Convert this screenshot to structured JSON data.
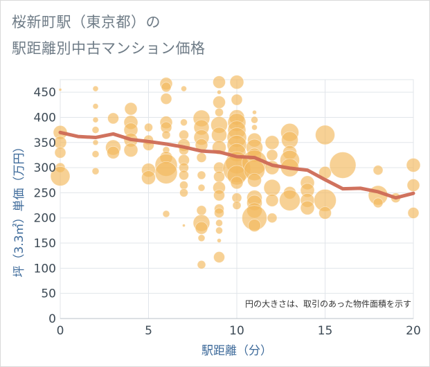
{
  "title_line1": "桜新町駅（東京都）の",
  "title_line2": "駅距離別中古マンション価格",
  "chart_data": {
    "type": "scatter",
    "xlabel": "駅距離（分）",
    "ylabel": "坪（3.3㎡）単価（万円）",
    "xlim": [
      0,
      20
    ],
    "ylim": [
      0,
      475
    ],
    "x_ticks": [
      0,
      5,
      10,
      15,
      20
    ],
    "y_ticks": [
      0,
      50,
      100,
      150,
      200,
      250,
      300,
      350,
      400,
      450
    ],
    "grid": true,
    "note": "円の大きさは、取引のあった物件面積を示す",
    "bubble_color": "#f2b85c",
    "line_color": "#cd6a55",
    "bubbles": [
      {
        "x": 0,
        "y": 455,
        "r": 2
      },
      {
        "x": 0,
        "y": 370,
        "r": 10
      },
      {
        "x": 0,
        "y": 350,
        "r": 9
      },
      {
        "x": 0,
        "y": 330,
        "r": 8
      },
      {
        "x": 0,
        "y": 300,
        "r": 7
      },
      {
        "x": 0,
        "y": 283,
        "r": 14
      },
      {
        "x": 2,
        "y": 457,
        "r": 4
      },
      {
        "x": 2,
        "y": 422,
        "r": 4
      },
      {
        "x": 2,
        "y": 395,
        "r": 4
      },
      {
        "x": 2,
        "y": 375,
        "r": 5
      },
      {
        "x": 2,
        "y": 350,
        "r": 4
      },
      {
        "x": 2,
        "y": 327,
        "r": 5
      },
      {
        "x": 2,
        "y": 293,
        "r": 5
      },
      {
        "x": 3,
        "y": 398,
        "r": 8
      },
      {
        "x": 3,
        "y": 340,
        "r": 11
      },
      {
        "x": 3,
        "y": 330,
        "r": 9
      },
      {
        "x": 4,
        "y": 417,
        "r": 9
      },
      {
        "x": 4,
        "y": 390,
        "r": 10
      },
      {
        "x": 4,
        "y": 375,
        "r": 10
      },
      {
        "x": 4,
        "y": 355,
        "r": 10
      },
      {
        "x": 4,
        "y": 335,
        "r": 10
      },
      {
        "x": 5,
        "y": 380,
        "r": 6
      },
      {
        "x": 5,
        "y": 355,
        "r": 7
      },
      {
        "x": 5,
        "y": 345,
        "r": 8
      },
      {
        "x": 5,
        "y": 295,
        "r": 10
      },
      {
        "x": 5,
        "y": 280,
        "r": 10
      },
      {
        "x": 6,
        "y": 467,
        "r": 9
      },
      {
        "x": 6,
        "y": 460,
        "r": 7
      },
      {
        "x": 6,
        "y": 437,
        "r": 8
      },
      {
        "x": 6,
        "y": 390,
        "r": 9
      },
      {
        "x": 6,
        "y": 380,
        "r": 8
      },
      {
        "x": 6,
        "y": 365,
        "r": 6
      },
      {
        "x": 6,
        "y": 335,
        "r": 5
      },
      {
        "x": 6,
        "y": 320,
        "r": 9
      },
      {
        "x": 6,
        "y": 305,
        "r": 16
      },
      {
        "x": 6,
        "y": 290,
        "r": 16
      },
      {
        "x": 6,
        "y": 208,
        "r": 5
      },
      {
        "x": 7,
        "y": 457,
        "r": 4
      },
      {
        "x": 7,
        "y": 390,
        "r": 5
      },
      {
        "x": 7,
        "y": 365,
        "r": 7
      },
      {
        "x": 7,
        "y": 345,
        "r": 9
      },
      {
        "x": 7,
        "y": 335,
        "r": 7
      },
      {
        "x": 7,
        "y": 315,
        "r": 8
      },
      {
        "x": 7,
        "y": 300,
        "r": 7
      },
      {
        "x": 7,
        "y": 285,
        "r": 7
      },
      {
        "x": 7,
        "y": 265,
        "r": 6
      },
      {
        "x": 7,
        "y": 250,
        "r": 6
      },
      {
        "x": 7,
        "y": 185,
        "r": 2
      },
      {
        "x": 8,
        "y": 398,
        "r": 12
      },
      {
        "x": 8,
        "y": 380,
        "r": 11
      },
      {
        "x": 8,
        "y": 360,
        "r": 11
      },
      {
        "x": 8,
        "y": 345,
        "r": 9
      },
      {
        "x": 8,
        "y": 320,
        "r": 7
      },
      {
        "x": 8,
        "y": 285,
        "r": 6
      },
      {
        "x": 8,
        "y": 260,
        "r": 5
      },
      {
        "x": 8,
        "y": 215,
        "r": 7
      },
      {
        "x": 8,
        "y": 190,
        "r": 12
      },
      {
        "x": 8,
        "y": 180,
        "r": 9
      },
      {
        "x": 8,
        "y": 160,
        "r": 5
      },
      {
        "x": 8,
        "y": 107,
        "r": 6
      },
      {
        "x": 9,
        "y": 470,
        "r": 9
      },
      {
        "x": 9,
        "y": 450,
        "r": 3
      },
      {
        "x": 9,
        "y": 430,
        "r": 9
      },
      {
        "x": 9,
        "y": 410,
        "r": 6
      },
      {
        "x": 9,
        "y": 385,
        "r": 12
      },
      {
        "x": 9,
        "y": 365,
        "r": 11
      },
      {
        "x": 9,
        "y": 340,
        "r": 10
      },
      {
        "x": 9,
        "y": 300,
        "r": 8
      },
      {
        "x": 9,
        "y": 282,
        "r": 8
      },
      {
        "x": 9,
        "y": 260,
        "r": 9
      },
      {
        "x": 9,
        "y": 245,
        "r": 8
      },
      {
        "x": 9,
        "y": 218,
        "r": 7
      },
      {
        "x": 9,
        "y": 210,
        "r": 7
      },
      {
        "x": 9,
        "y": 190,
        "r": 5
      },
      {
        "x": 9,
        "y": 175,
        "r": 5
      },
      {
        "x": 9,
        "y": 155,
        "r": 3
      },
      {
        "x": 9,
        "y": 122,
        "r": 8
      },
      {
        "x": 10,
        "y": 470,
        "r": 10
      },
      {
        "x": 10,
        "y": 435,
        "r": 8
      },
      {
        "x": 10,
        "y": 400,
        "r": 11
      },
      {
        "x": 10,
        "y": 390,
        "r": 13
      },
      {
        "x": 10,
        "y": 375,
        "r": 13
      },
      {
        "x": 10,
        "y": 360,
        "r": 14
      },
      {
        "x": 10,
        "y": 345,
        "r": 14
      },
      {
        "x": 10,
        "y": 330,
        "r": 13
      },
      {
        "x": 10,
        "y": 310,
        "r": 16
      },
      {
        "x": 10,
        "y": 298,
        "r": 20
      },
      {
        "x": 10,
        "y": 285,
        "r": 14
      },
      {
        "x": 10,
        "y": 270,
        "r": 9
      },
      {
        "x": 10,
        "y": 240,
        "r": 7
      },
      {
        "x": 10,
        "y": 225,
        "r": 6
      },
      {
        "x": 11,
        "y": 410,
        "r": 3
      },
      {
        "x": 11,
        "y": 395,
        "r": 5
      },
      {
        "x": 11,
        "y": 380,
        "r": 4
      },
      {
        "x": 11,
        "y": 355,
        "r": 10
      },
      {
        "x": 11,
        "y": 340,
        "r": 12
      },
      {
        "x": 11,
        "y": 325,
        "r": 10
      },
      {
        "x": 11,
        "y": 310,
        "r": 18
      },
      {
        "x": 11,
        "y": 295,
        "r": 15
      },
      {
        "x": 11,
        "y": 275,
        "r": 10
      },
      {
        "x": 11,
        "y": 240,
        "r": 11
      },
      {
        "x": 11,
        "y": 230,
        "r": 11
      },
      {
        "x": 11,
        "y": 215,
        "r": 11
      },
      {
        "x": 11,
        "y": 200,
        "r": 18
      },
      {
        "x": 11,
        "y": 185,
        "r": 9
      },
      {
        "x": 12,
        "y": 350,
        "r": 10
      },
      {
        "x": 12,
        "y": 325,
        "r": 8
      },
      {
        "x": 12,
        "y": 300,
        "r": 10
      },
      {
        "x": 12,
        "y": 260,
        "r": 12
      },
      {
        "x": 12,
        "y": 235,
        "r": 9
      },
      {
        "x": 12,
        "y": 200,
        "r": 7
      },
      {
        "x": 13,
        "y": 370,
        "r": 13
      },
      {
        "x": 13,
        "y": 355,
        "r": 12
      },
      {
        "x": 13,
        "y": 330,
        "r": 10
      },
      {
        "x": 13,
        "y": 315,
        "r": 14
      },
      {
        "x": 13,
        "y": 300,
        "r": 13
      },
      {
        "x": 13,
        "y": 250,
        "r": 9
      },
      {
        "x": 13,
        "y": 235,
        "r": 15
      },
      {
        "x": 14,
        "y": 270,
        "r": 10
      },
      {
        "x": 14,
        "y": 255,
        "r": 10
      },
      {
        "x": 14,
        "y": 235,
        "r": 10
      },
      {
        "x": 14,
        "y": 220,
        "r": 10
      },
      {
        "x": 15,
        "y": 365,
        "r": 14
      },
      {
        "x": 15,
        "y": 290,
        "r": 9
      },
      {
        "x": 15,
        "y": 235,
        "r": 16
      },
      {
        "x": 15,
        "y": 210,
        "r": 9
      },
      {
        "x": 16,
        "y": 305,
        "r": 19
      },
      {
        "x": 18,
        "y": 295,
        "r": 7
      },
      {
        "x": 18,
        "y": 245,
        "r": 14
      },
      {
        "x": 18,
        "y": 230,
        "r": 7
      },
      {
        "x": 19,
        "y": 240,
        "r": 7
      },
      {
        "x": 20,
        "y": 305,
        "r": 10
      },
      {
        "x": 20,
        "y": 265,
        "r": 9
      },
      {
        "x": 20,
        "y": 210,
        "r": 8
      }
    ],
    "series": [
      {
        "x": [
          0,
          1,
          2,
          3,
          4,
          5,
          6,
          7,
          8,
          9,
          10,
          11,
          12,
          13,
          14,
          15,
          16,
          17,
          18,
          19,
          20
        ],
        "values": [
          370,
          362,
          360,
          367,
          356,
          352,
          347,
          341,
          333,
          331,
          322,
          320,
          305,
          299,
          295,
          276,
          258,
          259,
          252,
          240,
          249
        ]
      }
    ]
  }
}
